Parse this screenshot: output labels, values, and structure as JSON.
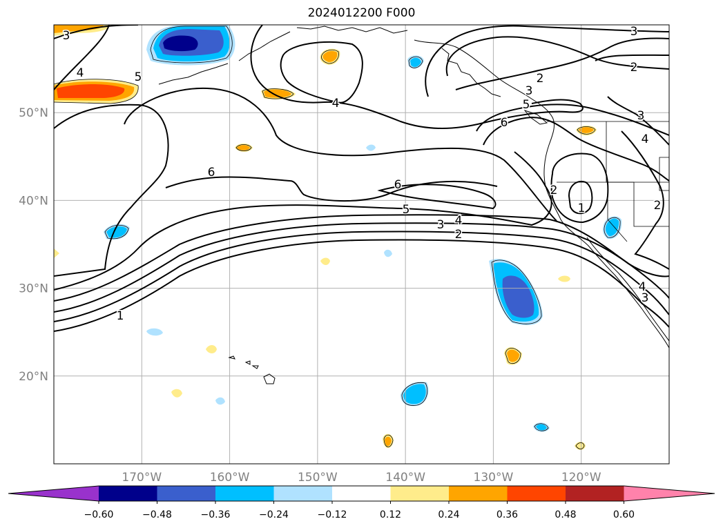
{
  "title": "2024012200 F000",
  "map": {
    "lon_range": [
      -180,
      -110
    ],
    "lat_range": [
      10,
      60
    ],
    "grid_lons": [
      -170,
      -160,
      -150,
      -140,
      -130,
      -120
    ],
    "grid_lats": [
      20,
      30,
      40,
      50
    ],
    "lon_labels": [
      "170°W",
      "160°W",
      "150°W",
      "140°W",
      "130°W",
      "120°W"
    ],
    "lat_labels": [
      "20°N",
      "30°N",
      "40°N",
      "50°N"
    ],
    "contour_labels": [
      "3",
      "4",
      "5",
      "4",
      "6",
      "6",
      "5",
      "3",
      "4",
      "2",
      "1",
      "2",
      "3",
      "5",
      "6",
      "3",
      "2",
      "3",
      "4",
      "2",
      "1",
      "2",
      "4",
      "3"
    ],
    "colors": {
      "label_gray": "#808080",
      "grid": "#b0b0b0",
      "contour": "#000000"
    }
  },
  "colorbar": {
    "tick_labels": [
      "−0.60",
      "−0.48",
      "−0.36",
      "−0.24",
      "−0.12",
      "0.12",
      "0.24",
      "0.36",
      "0.48",
      "0.60"
    ],
    "colors": [
      "#9932cc",
      "#00008b",
      "#3a5fcd",
      "#00bfff",
      "#b0e2ff",
      "#ffffff",
      "#ffec8b",
      "#ffa500",
      "#ff4500",
      "#b22222",
      "#ff82ab"
    ]
  }
}
